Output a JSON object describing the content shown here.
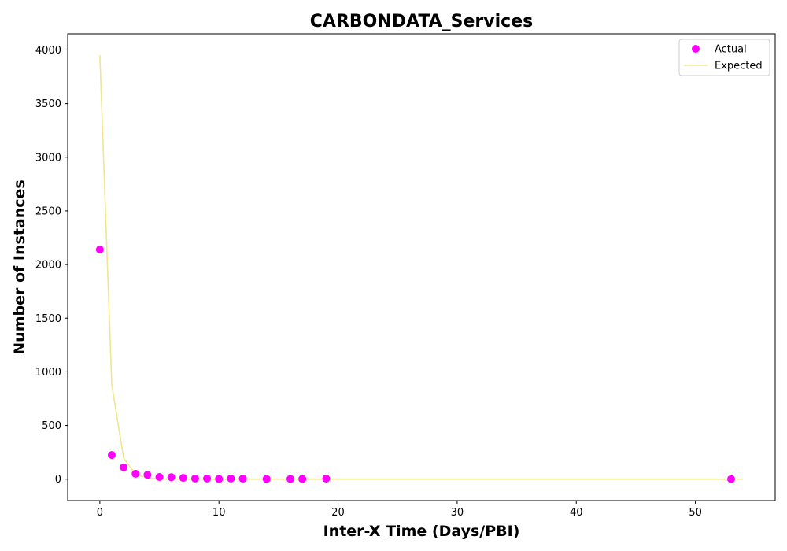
{
  "chart_data": {
    "type": "scatter",
    "title": "CARBONDATA_Services",
    "xlabel": "Inter-X Time (Days/PBI)",
    "ylabel": "Number of Instances",
    "xlim": [
      -2.7,
      56.7
    ],
    "ylim": [
      -200,
      4150
    ],
    "xticks": [
      0,
      10,
      20,
      30,
      40,
      50
    ],
    "yticks": [
      0,
      500,
      1000,
      1500,
      2000,
      2500,
      3000,
      3500,
      4000
    ],
    "grid": false,
    "legend_position": "top-right",
    "series": [
      {
        "name": "Actual",
        "kind": "scatter",
        "color": "#ff00ff",
        "points": [
          [
            0,
            2140
          ],
          [
            1,
            225
          ],
          [
            2,
            110
          ],
          [
            3,
            50
          ],
          [
            4,
            40
          ],
          [
            5,
            20
          ],
          [
            6,
            18
          ],
          [
            7,
            12
          ],
          [
            8,
            6
          ],
          [
            9,
            6
          ],
          [
            10,
            2
          ],
          [
            11,
            6
          ],
          [
            12,
            5
          ],
          [
            14,
            2
          ],
          [
            16,
            2
          ],
          [
            17,
            2
          ],
          [
            19,
            5
          ],
          [
            53,
            1
          ]
        ]
      },
      {
        "name": "Expected",
        "kind": "line",
        "color": "#f0e68c",
        "points": [
          [
            0,
            3950
          ],
          [
            1,
            880
          ],
          [
            2,
            195
          ],
          [
            3,
            44
          ],
          [
            4,
            10
          ],
          [
            5,
            3
          ],
          [
            6,
            1
          ],
          [
            7,
            0
          ],
          [
            10,
            0
          ],
          [
            20,
            0
          ],
          [
            30,
            0
          ],
          [
            40,
            0
          ],
          [
            50,
            0
          ],
          [
            54,
            0
          ]
        ]
      }
    ]
  }
}
